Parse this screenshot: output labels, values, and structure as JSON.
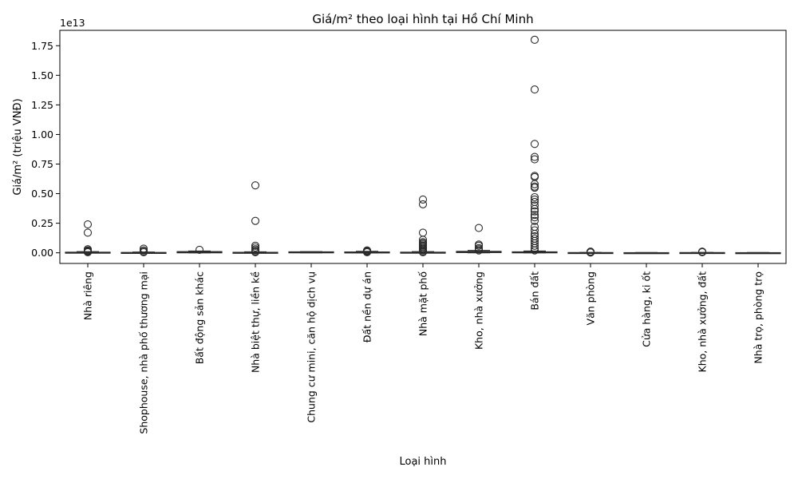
{
  "chart_data": {
    "type": "box",
    "title": "Giá/m² theo loại hình tại Hồ Chí Minh",
    "xlabel": "Loại hình",
    "ylabel": "Giá/m² (triệu VNĐ)",
    "y_offset_label": "1e13",
    "y_scale": 10000000000000.0,
    "ylim": [
      -0.09,
      1.88
    ],
    "yticks": [
      0.0,
      0.25,
      0.5,
      0.75,
      1.0,
      1.25,
      1.5,
      1.75
    ],
    "ytick_labels": [
      "0.00",
      "0.25",
      "0.50",
      "0.75",
      "1.00",
      "1.25",
      "1.50",
      "1.75"
    ],
    "grid": false,
    "categories": [
      "Nhà riêng",
      "Shophouse, nhà phố thương mại",
      "Bất động sản khác",
      "Nhà biệt thự, liền kề",
      "Chung cư mini, căn hộ dịch vụ",
      "Đất nền dự án",
      "Nhà mặt phố",
      "Kho, nhà xưởng",
      "Bán đất",
      "Văn phòng",
      "Cửa hàng, ki ốt",
      "Kho, nhà xưởng, đất",
      "Nhà trọ, phòng trọ"
    ],
    "boxes": [
      {
        "q1": 0.0,
        "median": 0.0,
        "q3": 0.005,
        "whisker_low": 0.0,
        "whisker_high": 0.01,
        "outliers": [
          0.24,
          0.17,
          0.03,
          0.02,
          0.015,
          0.01,
          0.005
        ]
      },
      {
        "q1": 0.0,
        "median": 0.0,
        "q3": 0.003,
        "whisker_low": 0.0,
        "whisker_high": 0.006,
        "outliers": [
          0.035,
          0.02,
          0.01,
          0.005
        ]
      },
      {
        "q1": 0.0,
        "median": 0.003,
        "q3": 0.01,
        "whisker_low": 0.0,
        "whisker_high": 0.015,
        "outliers": [
          0.025
        ]
      },
      {
        "q1": 0.0,
        "median": 0.0,
        "q3": 0.004,
        "whisker_low": 0.0,
        "whisker_high": 0.008,
        "outliers": [
          0.57,
          0.27,
          0.06,
          0.045,
          0.03,
          0.02,
          0.01,
          0.005
        ]
      },
      {
        "q1": 0.0,
        "median": 0.003,
        "q3": 0.008,
        "whisker_low": 0.0,
        "whisker_high": 0.01,
        "outliers": []
      },
      {
        "q1": 0.0,
        "median": 0.003,
        "q3": 0.007,
        "whisker_low": 0.0,
        "whisker_high": 0.012,
        "outliers": [
          0.02,
          0.015,
          0.01,
          0.005
        ]
      },
      {
        "q1": 0.0,
        "median": 0.0,
        "q3": 0.005,
        "whisker_low": 0.0,
        "whisker_high": 0.01,
        "outliers": [
          0.45,
          0.41,
          0.17,
          0.11,
          0.09,
          0.08,
          0.07,
          0.06,
          0.05,
          0.04,
          0.03,
          0.02,
          0.01,
          0.005
        ]
      },
      {
        "q1": 0.002,
        "median": 0.006,
        "q3": 0.012,
        "whisker_low": 0.0,
        "whisker_high": 0.02,
        "outliers": [
          0.21,
          0.07,
          0.06,
          0.04,
          0.03,
          0.02
        ]
      },
      {
        "q1": 0.0,
        "median": 0.003,
        "q3": 0.008,
        "whisker_low": 0.0,
        "whisker_high": 0.015,
        "outliers": [
          1.8,
          1.38,
          0.92,
          0.81,
          0.79,
          0.65,
          0.64,
          0.58,
          0.56,
          0.55,
          0.47,
          0.45,
          0.43,
          0.4,
          0.37,
          0.35,
          0.32,
          0.3,
          0.27,
          0.22,
          0.19,
          0.16,
          0.14,
          0.12,
          0.1,
          0.08,
          0.06,
          0.04,
          0.02
        ]
      },
      {
        "q1": 0.0,
        "median": 0.0,
        "q3": 0.002,
        "whisker_low": 0.0,
        "whisker_high": 0.003,
        "outliers": [
          0.01,
          0.005,
          0.002
        ]
      },
      {
        "q1": 0.0,
        "median": 0.0,
        "q3": 0.001,
        "whisker_low": 0.0,
        "whisker_high": 0.002,
        "outliers": []
      },
      {
        "q1": 0.0,
        "median": 0.0,
        "q3": 0.002,
        "whisker_low": 0.0,
        "whisker_high": 0.003,
        "outliers": [
          0.01,
          0.005
        ]
      },
      {
        "q1": 0.0,
        "median": 0.0,
        "q3": 0.001,
        "whisker_low": 0.0,
        "whisker_high": 0.002,
        "outliers": []
      }
    ]
  }
}
